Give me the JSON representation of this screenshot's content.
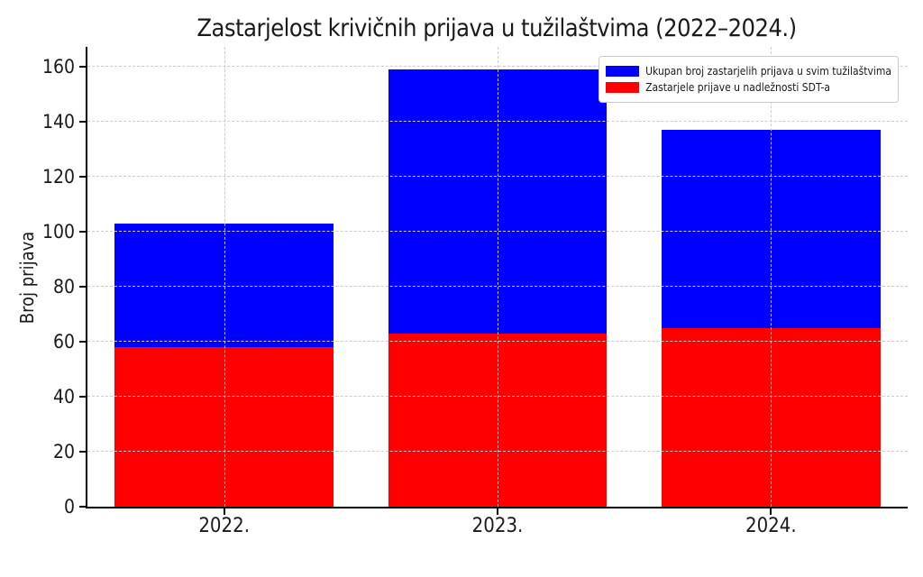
{
  "figure": {
    "background": "#ffffff"
  },
  "chart_data": {
    "type": "bar",
    "mode": "overlay",
    "title": "Zastarjelost krivičnih prijava u tužilaštvima (2022–2024.)",
    "xlabel": "",
    "ylabel": "Broj prijava",
    "categories": [
      "2022.",
      "2023.",
      "2024."
    ],
    "series": [
      {
        "name": "Ukupan broj zastarjelih prijava u svim tužilaštvima",
        "color": "#0000ff",
        "values": [
          103,
          159,
          137
        ]
      },
      {
        "name": "Zastarjele prijave u nadležnosti SDT-a",
        "color": "#ff0000",
        "values": [
          58,
          63,
          65
        ]
      }
    ],
    "yticks": [
      0,
      20,
      40,
      60,
      80,
      100,
      120,
      140,
      160
    ],
    "ylim": [
      0,
      167.3
    ],
    "bar_width_fraction": 0.8,
    "grid": true,
    "grid_on_top": true,
    "grid_color": "#cccccc",
    "grid_style": "dashed",
    "legend_position": "upper-right",
    "axis_color": "#000000",
    "text_color": "#1a1a1a"
  }
}
